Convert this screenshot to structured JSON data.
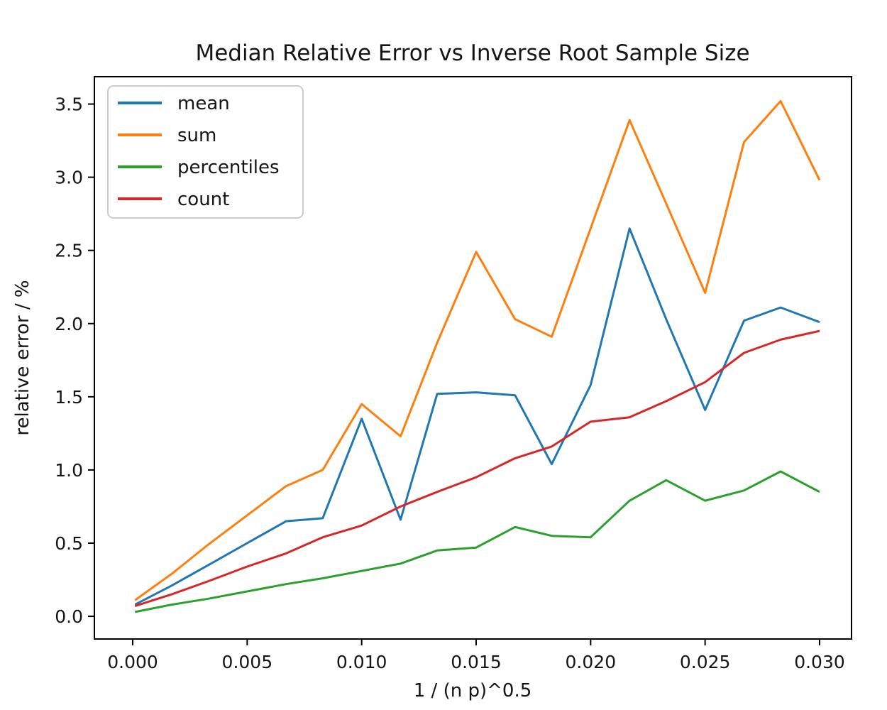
{
  "figure": {
    "background": "#ffffff",
    "frame_color": "#000000",
    "text_color": "#151515"
  },
  "chart_data": {
    "type": "line",
    "title": "Median Relative Error vs Inverse Root Sample Size",
    "xlabel": "1 / (n p)^0.5",
    "ylabel": "relative error / %",
    "grid": false,
    "legend_position": "upper left",
    "xlim": [
      -0.001674,
      0.031395
    ],
    "ylim": [
      -0.155,
      3.687
    ],
    "x_ticks": {
      "values": [
        0.0,
        0.005,
        0.01,
        0.015,
        0.02,
        0.025,
        0.03
      ],
      "labels": [
        "0.000",
        "0.005",
        "0.010",
        "0.015",
        "0.020",
        "0.025",
        "0.030"
      ]
    },
    "y_ticks": {
      "values": [
        0.0,
        0.5,
        1.0,
        1.5,
        2.0,
        2.5,
        3.0,
        3.5
      ],
      "labels": [
        "0.0",
        "0.5",
        "1.0",
        "1.5",
        "2.0",
        "2.5",
        "3.0",
        "3.5"
      ]
    },
    "x": [
      0.0001,
      0.0017,
      0.0033,
      0.005,
      0.0067,
      0.0083,
      0.01,
      0.0117,
      0.0133,
      0.015,
      0.0167,
      0.0183,
      0.02,
      0.0217,
      0.0233,
      0.025,
      0.0267,
      0.0283,
      0.03
    ],
    "series": [
      {
        "name": "mean",
        "color": "#1f77b4",
        "values": [
          0.08,
          0.21,
          0.35,
          0.5,
          0.65,
          0.67,
          1.35,
          0.66,
          1.52,
          1.53,
          1.51,
          1.04,
          1.58,
          2.65,
          2.03,
          1.41,
          2.02,
          2.11,
          2.01
        ]
      },
      {
        "name": "sum",
        "color": "#ff7f0e",
        "values": [
          0.11,
          0.29,
          0.49,
          0.69,
          0.89,
          1.0,
          1.45,
          1.23,
          1.87,
          2.49,
          2.03,
          1.91,
          2.65,
          3.39,
          2.82,
          2.21,
          3.24,
          3.52,
          2.98
        ]
      },
      {
        "name": "percentiles",
        "color": "#2ca02c",
        "values": [
          0.03,
          0.08,
          0.12,
          0.17,
          0.22,
          0.26,
          0.31,
          0.36,
          0.45,
          0.47,
          0.61,
          0.55,
          0.54,
          0.79,
          0.93,
          0.79,
          0.86,
          0.99,
          0.85
        ]
      },
      {
        "name": "count",
        "color": "#d62728",
        "values": [
          0.07,
          0.15,
          0.24,
          0.34,
          0.43,
          0.54,
          0.62,
          0.75,
          0.85,
          0.95,
          1.08,
          1.16,
          1.33,
          1.36,
          1.47,
          1.6,
          1.8,
          1.89,
          1.95
        ]
      }
    ]
  }
}
